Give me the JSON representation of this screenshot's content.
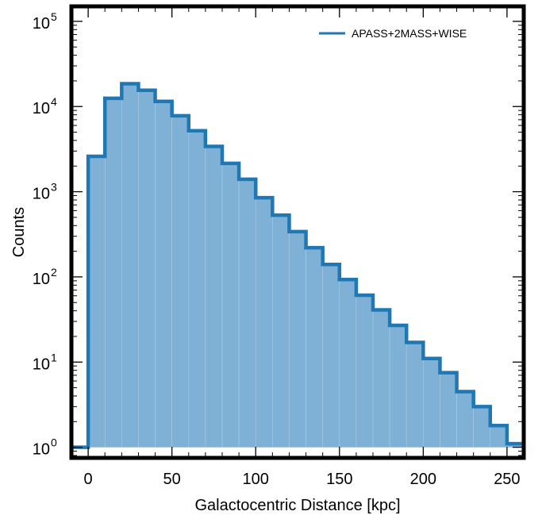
{
  "chart_data": {
    "type": "histogram",
    "xlabel": "Galactocentric Distance  [kpc]",
    "ylabel": "Counts",
    "xlim": [
      -10,
      260
    ],
    "ylim": [
      0.75,
      150000
    ],
    "yscale": "log",
    "grid": false,
    "legend_position": "top-right",
    "x_ticks": [
      {
        "value": 0,
        "label": "0"
      },
      {
        "value": 50,
        "label": "50"
      },
      {
        "value": 100,
        "label": "100"
      },
      {
        "value": 150,
        "label": "150"
      },
      {
        "value": 200,
        "label": "200"
      },
      {
        "value": 250,
        "label": "250"
      }
    ],
    "y_ticks": [
      {
        "value": 1,
        "base": "10",
        "exp": "0"
      },
      {
        "value": 10,
        "base": "10",
        "exp": "1"
      },
      {
        "value": 100,
        "base": "10",
        "exp": "2"
      },
      {
        "value": 1000,
        "base": "10",
        "exp": "3"
      },
      {
        "value": 10000,
        "base": "10",
        "exp": "4"
      },
      {
        "value": 100000,
        "base": "10",
        "exp": "5"
      }
    ],
    "series": [
      {
        "name": "APASS+2MASS+WISE",
        "color": "#1f77b4",
        "fill_color": "#7fb1d6",
        "bins": [
          {
            "x0": -10,
            "x1": 0,
            "count": 1
          },
          {
            "x0": 0,
            "x1": 10,
            "count": 2600
          },
          {
            "x0": 10,
            "x1": 20,
            "count": 12500
          },
          {
            "x0": 20,
            "x1": 30,
            "count": 18500
          },
          {
            "x0": 30,
            "x1": 40,
            "count": 15500
          },
          {
            "x0": 40,
            "x1": 50,
            "count": 11500
          },
          {
            "x0": 50,
            "x1": 60,
            "count": 7800
          },
          {
            "x0": 60,
            "x1": 70,
            "count": 5200
          },
          {
            "x0": 70,
            "x1": 80,
            "count": 3400
          },
          {
            "x0": 80,
            "x1": 90,
            "count": 2150
          },
          {
            "x0": 90,
            "x1": 100,
            "count": 1400
          },
          {
            "x0": 100,
            "x1": 110,
            "count": 850
          },
          {
            "x0": 110,
            "x1": 120,
            "count": 530
          },
          {
            "x0": 120,
            "x1": 130,
            "count": 340
          },
          {
            "x0": 130,
            "x1": 140,
            "count": 220
          },
          {
            "x0": 140,
            "x1": 150,
            "count": 140
          },
          {
            "x0": 150,
            "x1": 160,
            "count": 93
          },
          {
            "x0": 160,
            "x1": 170,
            "count": 61
          },
          {
            "x0": 170,
            "x1": 180,
            "count": 41
          },
          {
            "x0": 180,
            "x1": 190,
            "count": 27
          },
          {
            "x0": 190,
            "x1": 200,
            "count": 17
          },
          {
            "x0": 200,
            "x1": 210,
            "count": 11
          },
          {
            "x0": 210,
            "x1": 220,
            "count": 7.5
          },
          {
            "x0": 220,
            "x1": 230,
            "count": 4.5
          },
          {
            "x0": 230,
            "x1": 240,
            "count": 3
          },
          {
            "x0": 240,
            "x1": 250,
            "count": 1.8
          },
          {
            "x0": 250,
            "x1": 260,
            "count": 1.1
          }
        ]
      }
    ]
  }
}
